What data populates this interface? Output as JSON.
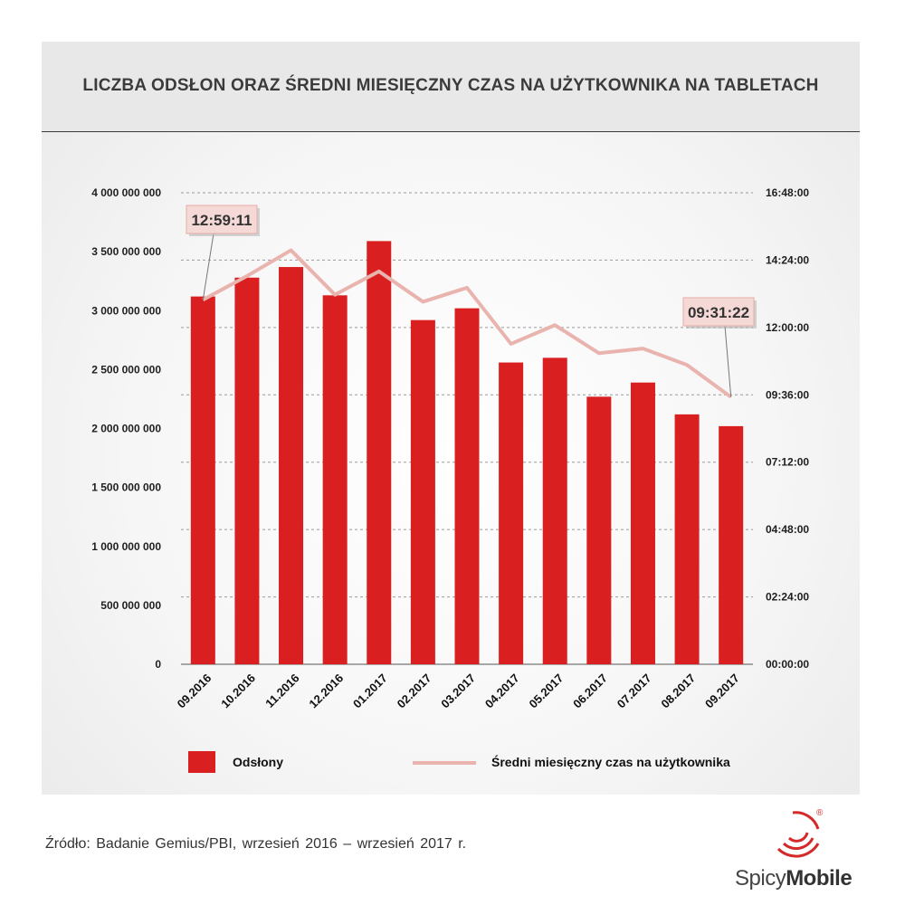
{
  "title": "LICZBA ODSŁON ORAZ ŚREDNI MIESIĘCZNY CZAS NA UŻYTKOWNIKA NA TABLETACH",
  "source": "Źródło: Badanie Gemius/PBI,  wrzesień  2016 – wrzesień  2017 r.",
  "logo": {
    "light": "Spicy",
    "bold": "Mobile",
    "mark": "®"
  },
  "colors": {
    "bar": "#d91f1f",
    "line": "#e9b3ae",
    "callout_bg": "#f5d9d6",
    "callout_border": "#e6aaa4"
  },
  "chart_data": {
    "type": "bar",
    "title": "LICZBA ODSŁON ORAZ ŚREDNI MIESIĘCZNY CZAS NA UŻYTKOWNIKA NA TABLETACH",
    "categories": [
      "09.2016",
      "10.2016",
      "11.2016",
      "12.2016",
      "01.2017",
      "02.2017",
      "03.2017",
      "04.2017",
      "05.2017",
      "06.2017",
      "07.2017",
      "08.2017",
      "09.2017"
    ],
    "series": [
      {
        "name": "Odsłony",
        "type": "bar",
        "axis": "left",
        "values": [
          3120000000,
          3280000000,
          3370000000,
          3130000000,
          3590000000,
          2920000000,
          3020000000,
          2560000000,
          2600000000,
          2270000000,
          2390000000,
          2120000000,
          2020000000
        ]
      },
      {
        "name": "Średni miesięczny czas na użytkownika",
        "type": "line",
        "axis": "right",
        "values": [
          "12:59:11",
          "13:50:00",
          "14:45:00",
          "13:10:00",
          "14:00:00",
          "12:55:00",
          "13:25:00",
          "11:25:00",
          "12:05:00",
          "11:05:00",
          "11:15:00",
          "10:40:00",
          "09:31:22"
        ]
      }
    ],
    "y_left": {
      "ylim": [
        0,
        4000000000
      ],
      "ticks": [
        "0",
        "500 000 000",
        "1 000 000 000",
        "1 500 000 000",
        "2 000 000 000",
        "2 500 000 000",
        "3 000 000 000",
        "3 500 000 000",
        "4 000 000 000"
      ]
    },
    "y_right": {
      "ylim": [
        "00:00:00",
        "16:48:00"
      ],
      "ticks": [
        "00:00:00",
        "02:24:00",
        "04:48:00",
        "07:12:00",
        "09:36:00",
        "12:00:00",
        "14:24:00",
        "16:48:00"
      ]
    },
    "callouts": [
      {
        "text": "12:59:11",
        "category": "09.2016"
      },
      {
        "text": "09:31:22",
        "category": "09.2017"
      }
    ],
    "grid": true,
    "legend": "bottom"
  }
}
